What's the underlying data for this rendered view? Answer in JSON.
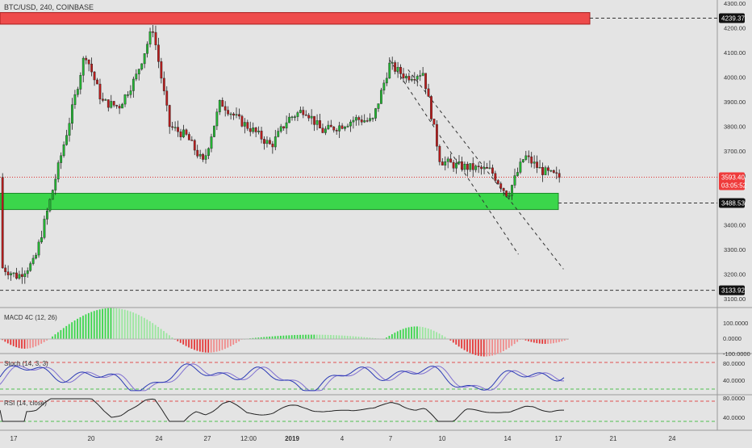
{
  "header": {
    "symbol_title": "BTC/USD, 240, COINBASE"
  },
  "colors": {
    "background": "#e4e4e4",
    "bull": "#22b532",
    "bear": "#b91c1c",
    "resistance_zone": "#ee4b4b",
    "support_zone": "#3bd64b",
    "last_price_badge": "#ef3b3b",
    "macd_line": "#b3b3b3",
    "stoch_k": "#2b3ab5",
    "stoch_d": "#7f6fd1",
    "rsi_line": "#222222"
  },
  "price_axis": {
    "labels": [
      "4300.00",
      "4200.00",
      "4100.00",
      "4000.00",
      "3900.00",
      "3800.00",
      "3700.00",
      "3600.00",
      "3500.00",
      "3400.00",
      "3300.00",
      "3200.00",
      "3100.00"
    ]
  },
  "price_badges": {
    "top_level": "4239.37",
    "last_price": "3593.40",
    "countdown": "03:05:52",
    "support_level": "3488.53",
    "bottom_level": "3133.92"
  },
  "indicators": {
    "macd": {
      "title": "MACD 4C (12, 26)",
      "axis_labels": [
        "100.0000",
        "0.0000",
        "-100.0000"
      ]
    },
    "stoch": {
      "title": "Stoch (14, 3, 3)",
      "axis_labels": [
        "80.0000",
        "40.0000"
      ]
    },
    "rsi": {
      "title": "RSI (14, close)",
      "axis_labels": [
        "80.0000",
        "40.0000"
      ]
    }
  },
  "time_axis": {
    "labels": [
      "17",
      "20",
      "24",
      "27",
      "12:00",
      "2019",
      "4",
      "7",
      "10",
      "14",
      "17",
      "21",
      "24"
    ]
  },
  "chart_data": {
    "type": "candlestick",
    "title": "BTC/USD, 240, COINBASE",
    "ylim": [
      3080,
      4320
    ],
    "x_range": [
      "Dec 15, 2018",
      "Jan 25, 2019"
    ],
    "zones": [
      {
        "kind": "resistance",
        "low": 4215,
        "high": 4262
      },
      {
        "kind": "support",
        "low": 3462,
        "high": 3528
      }
    ],
    "horizontal_levels": [
      4239.37,
      3593.4,
      3488.53,
      3133.92
    ],
    "channel": {
      "upper_line": [
        {
          "x": "Jan 8",
          "y": 4030
        },
        {
          "x": "Jan 17",
          "y": 3220
        }
      ],
      "lower_line": [
        {
          "x": "Jan 7",
          "y": 4070
        },
        {
          "x": "Jan 15",
          "y": 3280
        }
      ]
    },
    "price_path": [
      {
        "x": "Dec 15",
        "y": 3230
      },
      {
        "x": "Dec 16",
        "y": 3190
      },
      {
        "x": "Dec 17",
        "y": 3250
      },
      {
        "x": "Dec 18",
        "y": 3520
      },
      {
        "x": "Dec 19",
        "y": 3800
      },
      {
        "x": "Dec 20",
        "y": 4100
      },
      {
        "x": "Dec 21",
        "y": 3900
      },
      {
        "x": "Dec 22",
        "y": 3880
      },
      {
        "x": "Dec 23",
        "y": 4000
      },
      {
        "x": "Dec 24",
        "y": 4200
      },
      {
        "x": "Dec 25",
        "y": 3800
      },
      {
        "x": "Dec 26",
        "y": 3760
      },
      {
        "x": "Dec 27",
        "y": 3650
      },
      {
        "x": "Dec 28",
        "y": 3900
      },
      {
        "x": "Dec 29",
        "y": 3830
      },
      {
        "x": "Dec 30",
        "y": 3780
      },
      {
        "x": "Dec 31",
        "y": 3720
      },
      {
        "x": "Jan 1",
        "y": 3830
      },
      {
        "x": "Jan 2",
        "y": 3870
      },
      {
        "x": "Jan 3",
        "y": 3780
      },
      {
        "x": "Jan 4",
        "y": 3800
      },
      {
        "x": "Jan 5",
        "y": 3830
      },
      {
        "x": "Jan 6",
        "y": 3820
      },
      {
        "x": "Jan 7",
        "y": 4050
      },
      {
        "x": "Jan 8",
        "y": 4000
      },
      {
        "x": "Jan 9",
        "y": 4020
      },
      {
        "x": "Jan 10",
        "y": 3660
      },
      {
        "x": "Jan 11",
        "y": 3640
      },
      {
        "x": "Jan 12",
        "y": 3630
      },
      {
        "x": "Jan 13",
        "y": 3620
      },
      {
        "x": "Jan 14",
        "y": 3520
      },
      {
        "x": "Jan 15",
        "y": 3680
      },
      {
        "x": "Jan 16",
        "y": 3620
      },
      {
        "x": "Jan 17",
        "y": 3593
      }
    ]
  }
}
